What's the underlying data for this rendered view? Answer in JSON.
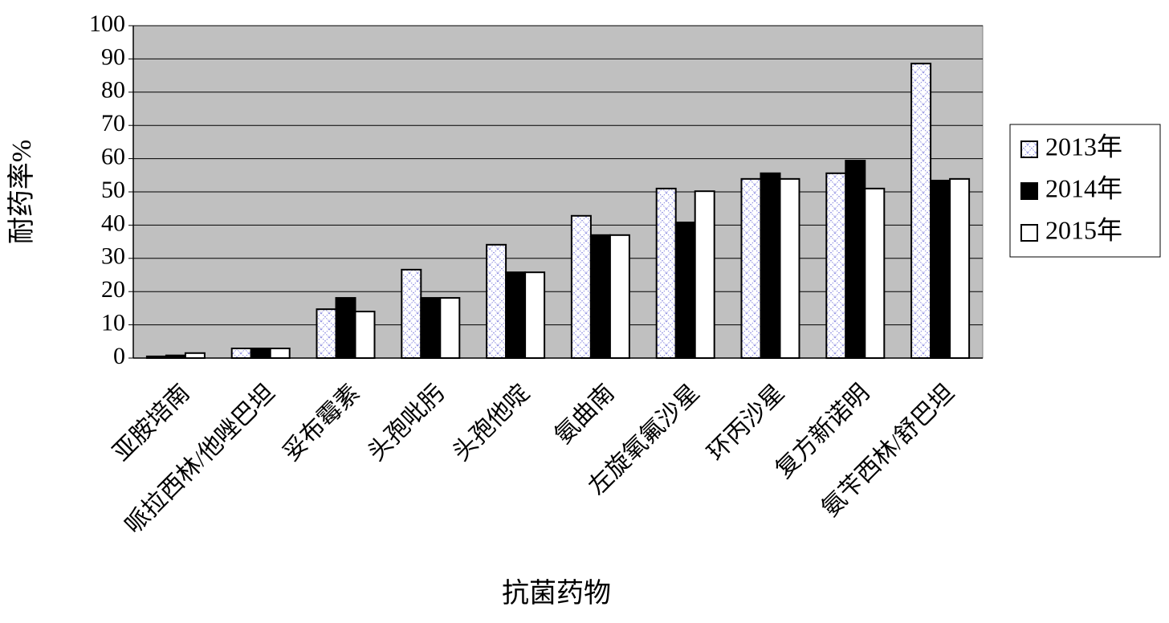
{
  "chart_data": {
    "type": "bar",
    "x_label": "抗菌药物",
    "y_label": "耐药率%",
    "categories": [
      "亚胺培南",
      "哌拉西林/他唑巴坦",
      "妥布霉素",
      "头孢吡肟",
      "头孢他啶",
      "氨曲南",
      "左旋氧氟沙星",
      "环丙沙星",
      "复方新诺明",
      "氨苄西林/舒巴坦"
    ],
    "series": [
      {
        "name": "2013年",
        "color": "#ffffff",
        "values": [
          0.5,
          2.9,
          14.7,
          26.6,
          34.1,
          42.8,
          51,
          53.9,
          55.6,
          88.6
        ]
      },
      {
        "name": "2014年",
        "color": "#000000",
        "values": [
          0.8,
          2.9,
          18.1,
          18.1,
          25.8,
          37,
          40.8,
          55.6,
          59.4,
          53.4
        ]
      },
      {
        "name": "2015年",
        "color": "#ffffff",
        "values": [
          1.5,
          2.9,
          14,
          18.1,
          25.8,
          37,
          50.2,
          53.9,
          51,
          53.9
        ]
      }
    ],
    "ylim": [
      0,
      100
    ],
    "yticks": [
      0,
      10,
      20,
      30,
      40,
      50,
      60,
      70,
      80,
      90,
      100
    ],
    "grid": true,
    "legend": "right"
  }
}
